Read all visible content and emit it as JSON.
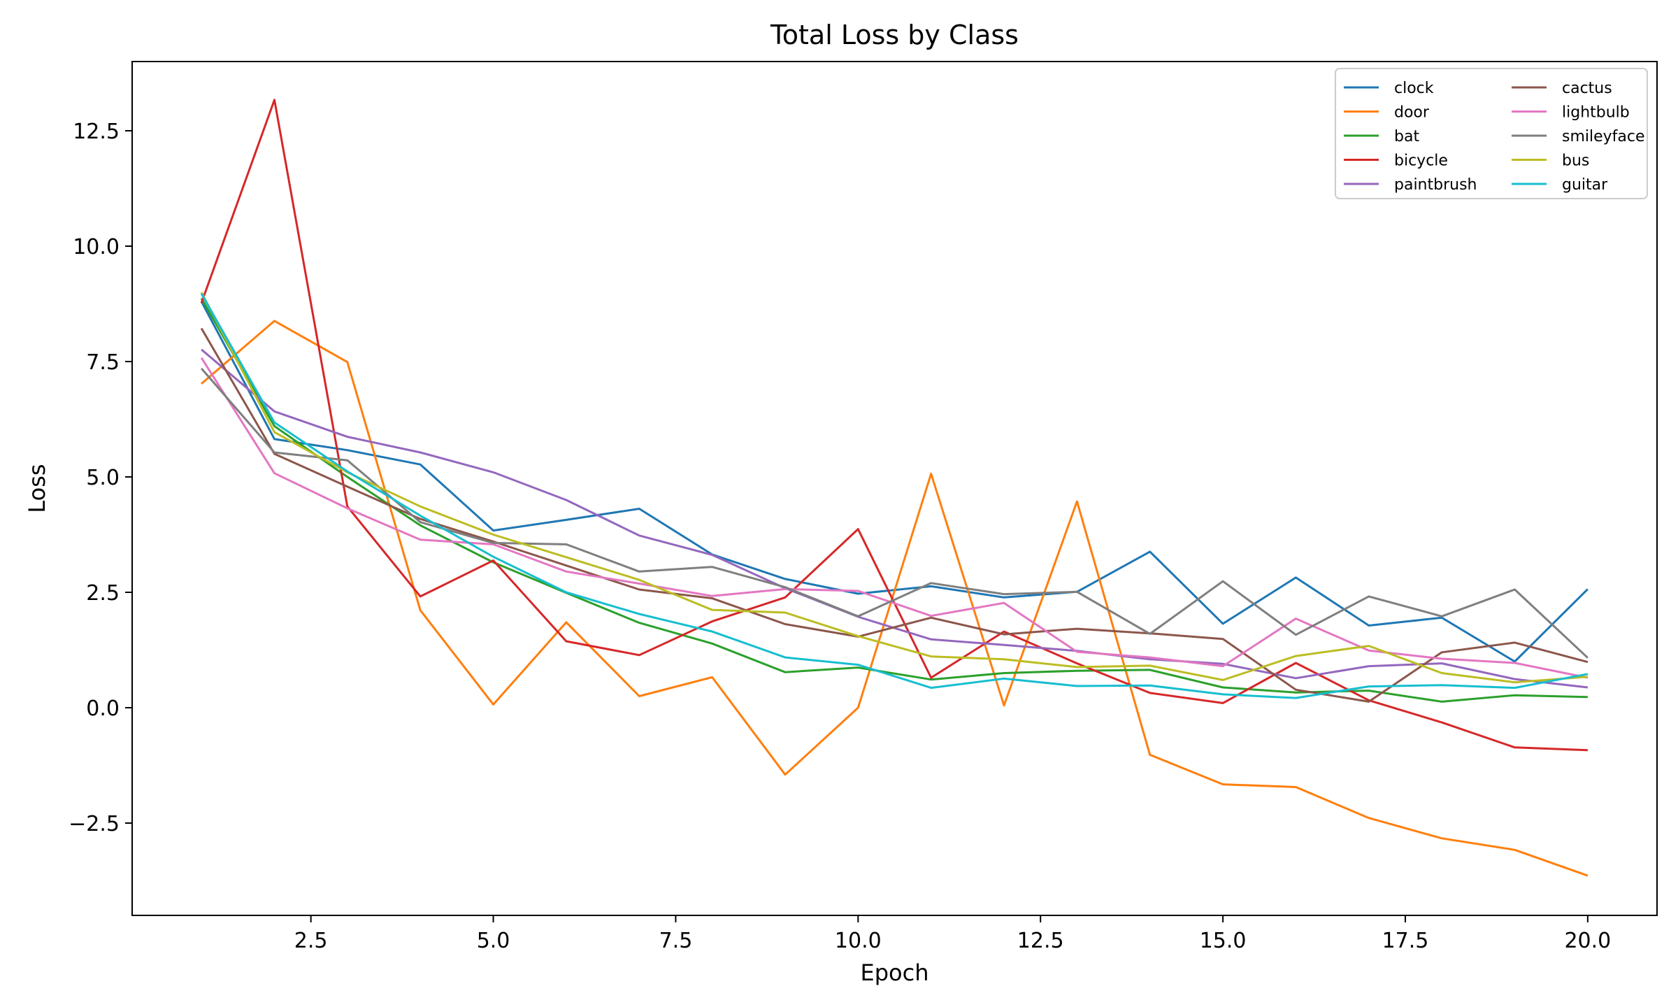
{
  "chart_data": {
    "type": "line",
    "title": "Total Loss by Class",
    "xlabel": "Epoch",
    "ylabel": "Loss",
    "xlim": [
      0.05,
      20.95
    ],
    "ylim": [
      -4.5,
      14.0
    ],
    "xticks": [
      2.5,
      5.0,
      7.5,
      10.0,
      12.5,
      15.0,
      17.5,
      20.0
    ],
    "xtick_labels": [
      "2.5",
      "5.0",
      "7.5",
      "10.0",
      "12.5",
      "15.0",
      "17.5",
      "20.0"
    ],
    "yticks": [
      -2.5,
      0.0,
      2.5,
      5.0,
      7.5,
      10.0,
      12.5
    ],
    "ytick_labels": [
      "−2.5",
      "0.0",
      "2.5",
      "5.0",
      "7.5",
      "10.0",
      "12.5"
    ],
    "grid": false,
    "legend_position": "top-right",
    "legend_columns": 2,
    "x": [
      1,
      2,
      3,
      4,
      5,
      6,
      7,
      8,
      9,
      10,
      11,
      12,
      13,
      14,
      15,
      16,
      17,
      18,
      19,
      20
    ],
    "series": [
      {
        "name": "clock",
        "color": "#1f77b4",
        "values": [
          8.8,
          5.82,
          5.58,
          5.27,
          3.84,
          4.07,
          4.31,
          3.32,
          2.79,
          2.47,
          2.63,
          2.39,
          2.51,
          3.38,
          1.82,
          2.82,
          1.78,
          1.95,
          1.0,
          2.57
        ]
      },
      {
        "name": "door",
        "color": "#ff7f0e",
        "values": [
          7.02,
          8.38,
          7.49,
          2.11,
          0.07,
          1.85,
          0.25,
          0.66,
          -1.45,
          0.0,
          5.07,
          0.05,
          4.47,
          -1.02,
          -1.66,
          -1.72,
          -2.39,
          -2.83,
          -3.08,
          -3.64
        ]
      },
      {
        "name": "bat",
        "color": "#2ca02c",
        "values": [
          8.87,
          6.1,
          5.0,
          3.95,
          3.15,
          2.49,
          1.84,
          1.39,
          0.77,
          0.87,
          0.61,
          0.75,
          0.8,
          0.82,
          0.44,
          0.33,
          0.37,
          0.13,
          0.27,
          0.23
        ]
      },
      {
        "name": "bicycle",
        "color": "#d62728",
        "values": [
          8.77,
          13.17,
          4.36,
          2.41,
          3.19,
          1.44,
          1.14,
          1.87,
          2.39,
          3.87,
          0.65,
          1.65,
          0.96,
          0.32,
          0.1,
          0.97,
          0.16,
          -0.32,
          -0.86,
          -0.92
        ]
      },
      {
        "name": "paintbrush",
        "color": "#9467bd",
        "values": [
          7.76,
          6.42,
          5.87,
          5.53,
          5.1,
          4.5,
          3.73,
          3.31,
          2.59,
          1.97,
          1.48,
          1.36,
          1.23,
          1.05,
          0.95,
          0.64,
          0.9,
          0.96,
          0.62,
          0.44
        ]
      },
      {
        "name": "cactus",
        "color": "#8c564b",
        "values": [
          8.22,
          5.5,
          4.79,
          4.09,
          3.6,
          3.08,
          2.56,
          2.37,
          1.81,
          1.54,
          1.95,
          1.59,
          1.71,
          1.61,
          1.49,
          0.39,
          0.13,
          1.2,
          1.41,
          0.99
        ]
      },
      {
        "name": "lightbulb",
        "color": "#e377c2",
        "values": [
          7.58,
          5.08,
          4.32,
          3.64,
          3.54,
          2.95,
          2.69,
          2.42,
          2.57,
          2.53,
          1.99,
          2.27,
          1.21,
          1.09,
          0.9,
          1.93,
          1.24,
          1.06,
          0.97,
          0.65
        ]
      },
      {
        "name": "smileyface",
        "color": "#7f7f7f",
        "values": [
          7.35,
          5.53,
          5.36,
          4.02,
          3.57,
          3.54,
          2.95,
          3.05,
          2.61,
          1.98,
          2.7,
          2.46,
          2.51,
          1.6,
          2.74,
          1.58,
          2.41,
          1.98,
          2.56,
          1.08
        ]
      },
      {
        "name": "bus",
        "color": "#bcbd22",
        "values": [
          9.0,
          5.97,
          5.1,
          4.36,
          3.75,
          3.26,
          2.77,
          2.12,
          2.06,
          1.55,
          1.11,
          1.05,
          0.88,
          0.91,
          0.6,
          1.12,
          1.34,
          0.75,
          0.55,
          0.67
        ]
      },
      {
        "name": "guitar",
        "color": "#17becf",
        "values": [
          8.97,
          6.18,
          5.12,
          4.16,
          3.27,
          2.5,
          2.03,
          1.65,
          1.09,
          0.93,
          0.43,
          0.63,
          0.47,
          0.48,
          0.29,
          0.21,
          0.46,
          0.49,
          0.43,
          0.73
        ]
      }
    ]
  }
}
